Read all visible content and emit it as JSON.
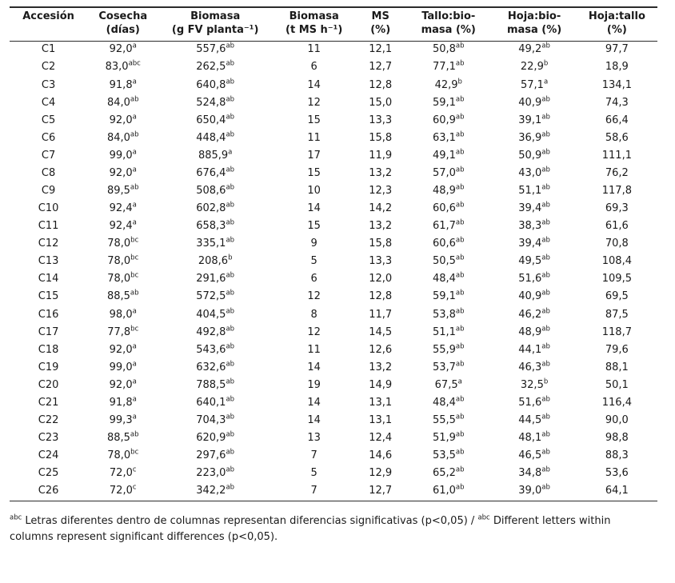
{
  "table": {
    "columns": [
      {
        "line1": "Accesión",
        "line2": ""
      },
      {
        "line1": "Cosecha",
        "line2": "(días)"
      },
      {
        "line1": "Biomasa",
        "line2": "(g FV planta⁻¹)"
      },
      {
        "line1": "Biomasa",
        "line2": "(t MS h⁻¹)"
      },
      {
        "line1": "MS",
        "line2": "(%)"
      },
      {
        "line1": "Tallo:bio-",
        "line2": "masa (%)"
      },
      {
        "line1": "Hoja:bio-",
        "line2": "masa (%)"
      },
      {
        "line1": "Hoja:tallo",
        "line2": "(%)"
      }
    ],
    "rows": [
      {
        "accession": "C1",
        "cells": [
          [
            "92,0",
            "a"
          ],
          [
            "557,6",
            "ab"
          ],
          [
            "11",
            ""
          ],
          [
            "12,1",
            ""
          ],
          [
            "50,8",
            "ab"
          ],
          [
            "49,2",
            "ab"
          ],
          [
            "97,7",
            ""
          ]
        ]
      },
      {
        "accession": "C2",
        "cells": [
          [
            "83,0",
            "abc"
          ],
          [
            "262,5",
            "ab"
          ],
          [
            "6",
            ""
          ],
          [
            "12,7",
            ""
          ],
          [
            "77,1",
            "ab"
          ],
          [
            "22,9",
            "b"
          ],
          [
            "18,9",
            ""
          ]
        ]
      },
      {
        "accession": "C3",
        "cells": [
          [
            "91,8",
            "a"
          ],
          [
            "640,8",
            "ab"
          ],
          [
            "14",
            ""
          ],
          [
            "12,8",
            ""
          ],
          [
            "42,9",
            "b"
          ],
          [
            "57,1",
            "a"
          ],
          [
            "134,1",
            ""
          ]
        ]
      },
      {
        "accession": "C4",
        "cells": [
          [
            "84,0",
            "ab"
          ],
          [
            "524,8",
            "ab"
          ],
          [
            "12",
            ""
          ],
          [
            "15,0",
            ""
          ],
          [
            "59,1",
            "ab"
          ],
          [
            "40,9",
            "ab"
          ],
          [
            "74,3",
            ""
          ]
        ]
      },
      {
        "accession": "C5",
        "cells": [
          [
            "92,0",
            "a"
          ],
          [
            "650,4",
            "ab"
          ],
          [
            "15",
            ""
          ],
          [
            "13,3",
            ""
          ],
          [
            "60,9",
            "ab"
          ],
          [
            "39,1",
            "ab"
          ],
          [
            "66,4",
            ""
          ]
        ]
      },
      {
        "accession": "C6",
        "cells": [
          [
            "84,0",
            "ab"
          ],
          [
            "448,4",
            "ab"
          ],
          [
            "11",
            ""
          ],
          [
            "15,8",
            ""
          ],
          [
            "63,1",
            "ab"
          ],
          [
            "36,9",
            "ab"
          ],
          [
            "58,6",
            ""
          ]
        ]
      },
      {
        "accession": "C7",
        "cells": [
          [
            "99,0",
            "a"
          ],
          [
            "885,9",
            "a"
          ],
          [
            "17",
            ""
          ],
          [
            "11,9",
            ""
          ],
          [
            "49,1",
            "ab"
          ],
          [
            "50,9",
            "ab"
          ],
          [
            "111,1",
            ""
          ]
        ]
      },
      {
        "accession": "C8",
        "cells": [
          [
            "92,0",
            "a"
          ],
          [
            "676,4",
            "ab"
          ],
          [
            "15",
            ""
          ],
          [
            "13,2",
            ""
          ],
          [
            "57,0",
            "ab"
          ],
          [
            "43,0",
            "ab"
          ],
          [
            "76,2",
            ""
          ]
        ]
      },
      {
        "accession": "C9",
        "cells": [
          [
            "89,5",
            "ab"
          ],
          [
            "508,6",
            "ab"
          ],
          [
            "10",
            ""
          ],
          [
            "12,3",
            ""
          ],
          [
            "48,9",
            "ab"
          ],
          [
            "51,1",
            "ab"
          ],
          [
            "117,8",
            ""
          ]
        ]
      },
      {
        "accession": "C10",
        "cells": [
          [
            "92,4",
            "a"
          ],
          [
            "602,8",
            "ab"
          ],
          [
            "14",
            ""
          ],
          [
            "14,2",
            ""
          ],
          [
            "60,6",
            "ab"
          ],
          [
            "39,4",
            "ab"
          ],
          [
            "69,3",
            ""
          ]
        ]
      },
      {
        "accession": "C11",
        "cells": [
          [
            "92,4",
            "a"
          ],
          [
            "658,3",
            "ab"
          ],
          [
            "15",
            ""
          ],
          [
            "13,2",
            ""
          ],
          [
            "61,7",
            "ab"
          ],
          [
            "38,3",
            "ab"
          ],
          [
            "61,6",
            ""
          ]
        ]
      },
      {
        "accession": "C12",
        "cells": [
          [
            "78,0",
            "bc"
          ],
          [
            "335,1",
            "ab"
          ],
          [
            "9",
            ""
          ],
          [
            "15,8",
            ""
          ],
          [
            "60,6",
            "ab"
          ],
          [
            "39,4",
            "ab"
          ],
          [
            "70,8",
            ""
          ]
        ]
      },
      {
        "accession": "C13",
        "cells": [
          [
            "78,0",
            "bc"
          ],
          [
            "208,6",
            "b"
          ],
          [
            "5",
            ""
          ],
          [
            "13,3",
            ""
          ],
          [
            "50,5",
            "ab"
          ],
          [
            "49,5",
            "ab"
          ],
          [
            "108,4",
            ""
          ]
        ]
      },
      {
        "accession": "C14",
        "cells": [
          [
            "78,0",
            "bc"
          ],
          [
            "291,6",
            "ab"
          ],
          [
            "6",
            ""
          ],
          [
            "12,0",
            ""
          ],
          [
            "48,4",
            "ab"
          ],
          [
            "51,6",
            "ab"
          ],
          [
            "109,5",
            ""
          ]
        ]
      },
      {
        "accession": "C15",
        "cells": [
          [
            "88,5",
            "ab"
          ],
          [
            "572,5",
            "ab"
          ],
          [
            "12",
            ""
          ],
          [
            "12,8",
            ""
          ],
          [
            "59,1",
            "ab"
          ],
          [
            "40,9",
            "ab"
          ],
          [
            "69,5",
            ""
          ]
        ]
      },
      {
        "accession": "C16",
        "cells": [
          [
            "98,0",
            "a"
          ],
          [
            "404,5",
            "ab"
          ],
          [
            "8",
            ""
          ],
          [
            "11,7",
            ""
          ],
          [
            "53,8",
            "ab"
          ],
          [
            "46,2",
            "ab"
          ],
          [
            "87,5",
            ""
          ]
        ]
      },
      {
        "accession": "C17",
        "cells": [
          [
            "77,8",
            "bc"
          ],
          [
            "492,8",
            "ab"
          ],
          [
            "12",
            ""
          ],
          [
            "14,5",
            ""
          ],
          [
            "51,1",
            "ab"
          ],
          [
            "48,9",
            "ab"
          ],
          [
            "118,7",
            ""
          ]
        ]
      },
      {
        "accession": "C18",
        "cells": [
          [
            "92,0",
            "a"
          ],
          [
            "543,6",
            "ab"
          ],
          [
            "11",
            ""
          ],
          [
            "12,6",
            ""
          ],
          [
            "55,9",
            "ab"
          ],
          [
            "44,1",
            "ab"
          ],
          [
            "79,6",
            ""
          ]
        ]
      },
      {
        "accession": "C19",
        "cells": [
          [
            "99,0",
            "a"
          ],
          [
            "632,6",
            "ab"
          ],
          [
            "14",
            ""
          ],
          [
            "13,2",
            ""
          ],
          [
            "53,7",
            "ab"
          ],
          [
            "46,3",
            "ab"
          ],
          [
            "88,1",
            ""
          ]
        ]
      },
      {
        "accession": "C20",
        "cells": [
          [
            "92,0",
            "a"
          ],
          [
            "788,5",
            "ab"
          ],
          [
            "19",
            ""
          ],
          [
            "14,9",
            ""
          ],
          [
            "67,5",
            "a"
          ],
          [
            "32,5",
            "b"
          ],
          [
            "50,1",
            ""
          ]
        ]
      },
      {
        "accession": "C21",
        "cells": [
          [
            "91,8",
            "a"
          ],
          [
            "640,1",
            "ab"
          ],
          [
            "14",
            ""
          ],
          [
            "13,1",
            ""
          ],
          [
            "48,4",
            "ab"
          ],
          [
            "51,6",
            "ab"
          ],
          [
            "116,4",
            ""
          ]
        ]
      },
      {
        "accession": "C22",
        "cells": [
          [
            "99,3",
            "a"
          ],
          [
            "704,3",
            "ab"
          ],
          [
            "14",
            ""
          ],
          [
            "13,1",
            ""
          ],
          [
            "55,5",
            "ab"
          ],
          [
            "44,5",
            "ab"
          ],
          [
            "90,0",
            ""
          ]
        ]
      },
      {
        "accession": "C23",
        "cells": [
          [
            "88,5",
            "ab"
          ],
          [
            "620,9",
            "ab"
          ],
          [
            "13",
            ""
          ],
          [
            "12,4",
            ""
          ],
          [
            "51,9",
            "ab"
          ],
          [
            "48,1",
            "ab"
          ],
          [
            "98,8",
            ""
          ]
        ]
      },
      {
        "accession": "C24",
        "cells": [
          [
            "78,0",
            "bc"
          ],
          [
            "297,6",
            "ab"
          ],
          [
            "7",
            ""
          ],
          [
            "14,6",
            ""
          ],
          [
            "53,5",
            "ab"
          ],
          [
            "46,5",
            "ab"
          ],
          [
            "88,3",
            ""
          ]
        ]
      },
      {
        "accession": "C25",
        "cells": [
          [
            "72,0",
            "c"
          ],
          [
            "223,0",
            "ab"
          ],
          [
            "5",
            ""
          ],
          [
            "12,9",
            ""
          ],
          [
            "65,2",
            "ab"
          ],
          [
            "34,8",
            "ab"
          ],
          [
            "53,6",
            ""
          ]
        ]
      },
      {
        "accession": "C26",
        "cells": [
          [
            "72,0",
            "c"
          ],
          [
            "342,2",
            "ab"
          ],
          [
            "7",
            ""
          ],
          [
            "12,7",
            ""
          ],
          [
            "61,0",
            "ab"
          ],
          [
            "39,0",
            "ab"
          ],
          [
            "64,1",
            ""
          ]
        ]
      }
    ]
  },
  "footnote": {
    "segments": [
      {
        "type": "sup",
        "text": "abc"
      },
      {
        "type": "text",
        "text": " Letras diferentes dentro de columnas representan diferencias significativas (p<0,05) / "
      },
      {
        "type": "sup",
        "text": "abc"
      },
      {
        "type": "text",
        "text": " Different letters within columns represent significant differences (p<0,05)."
      }
    ]
  }
}
